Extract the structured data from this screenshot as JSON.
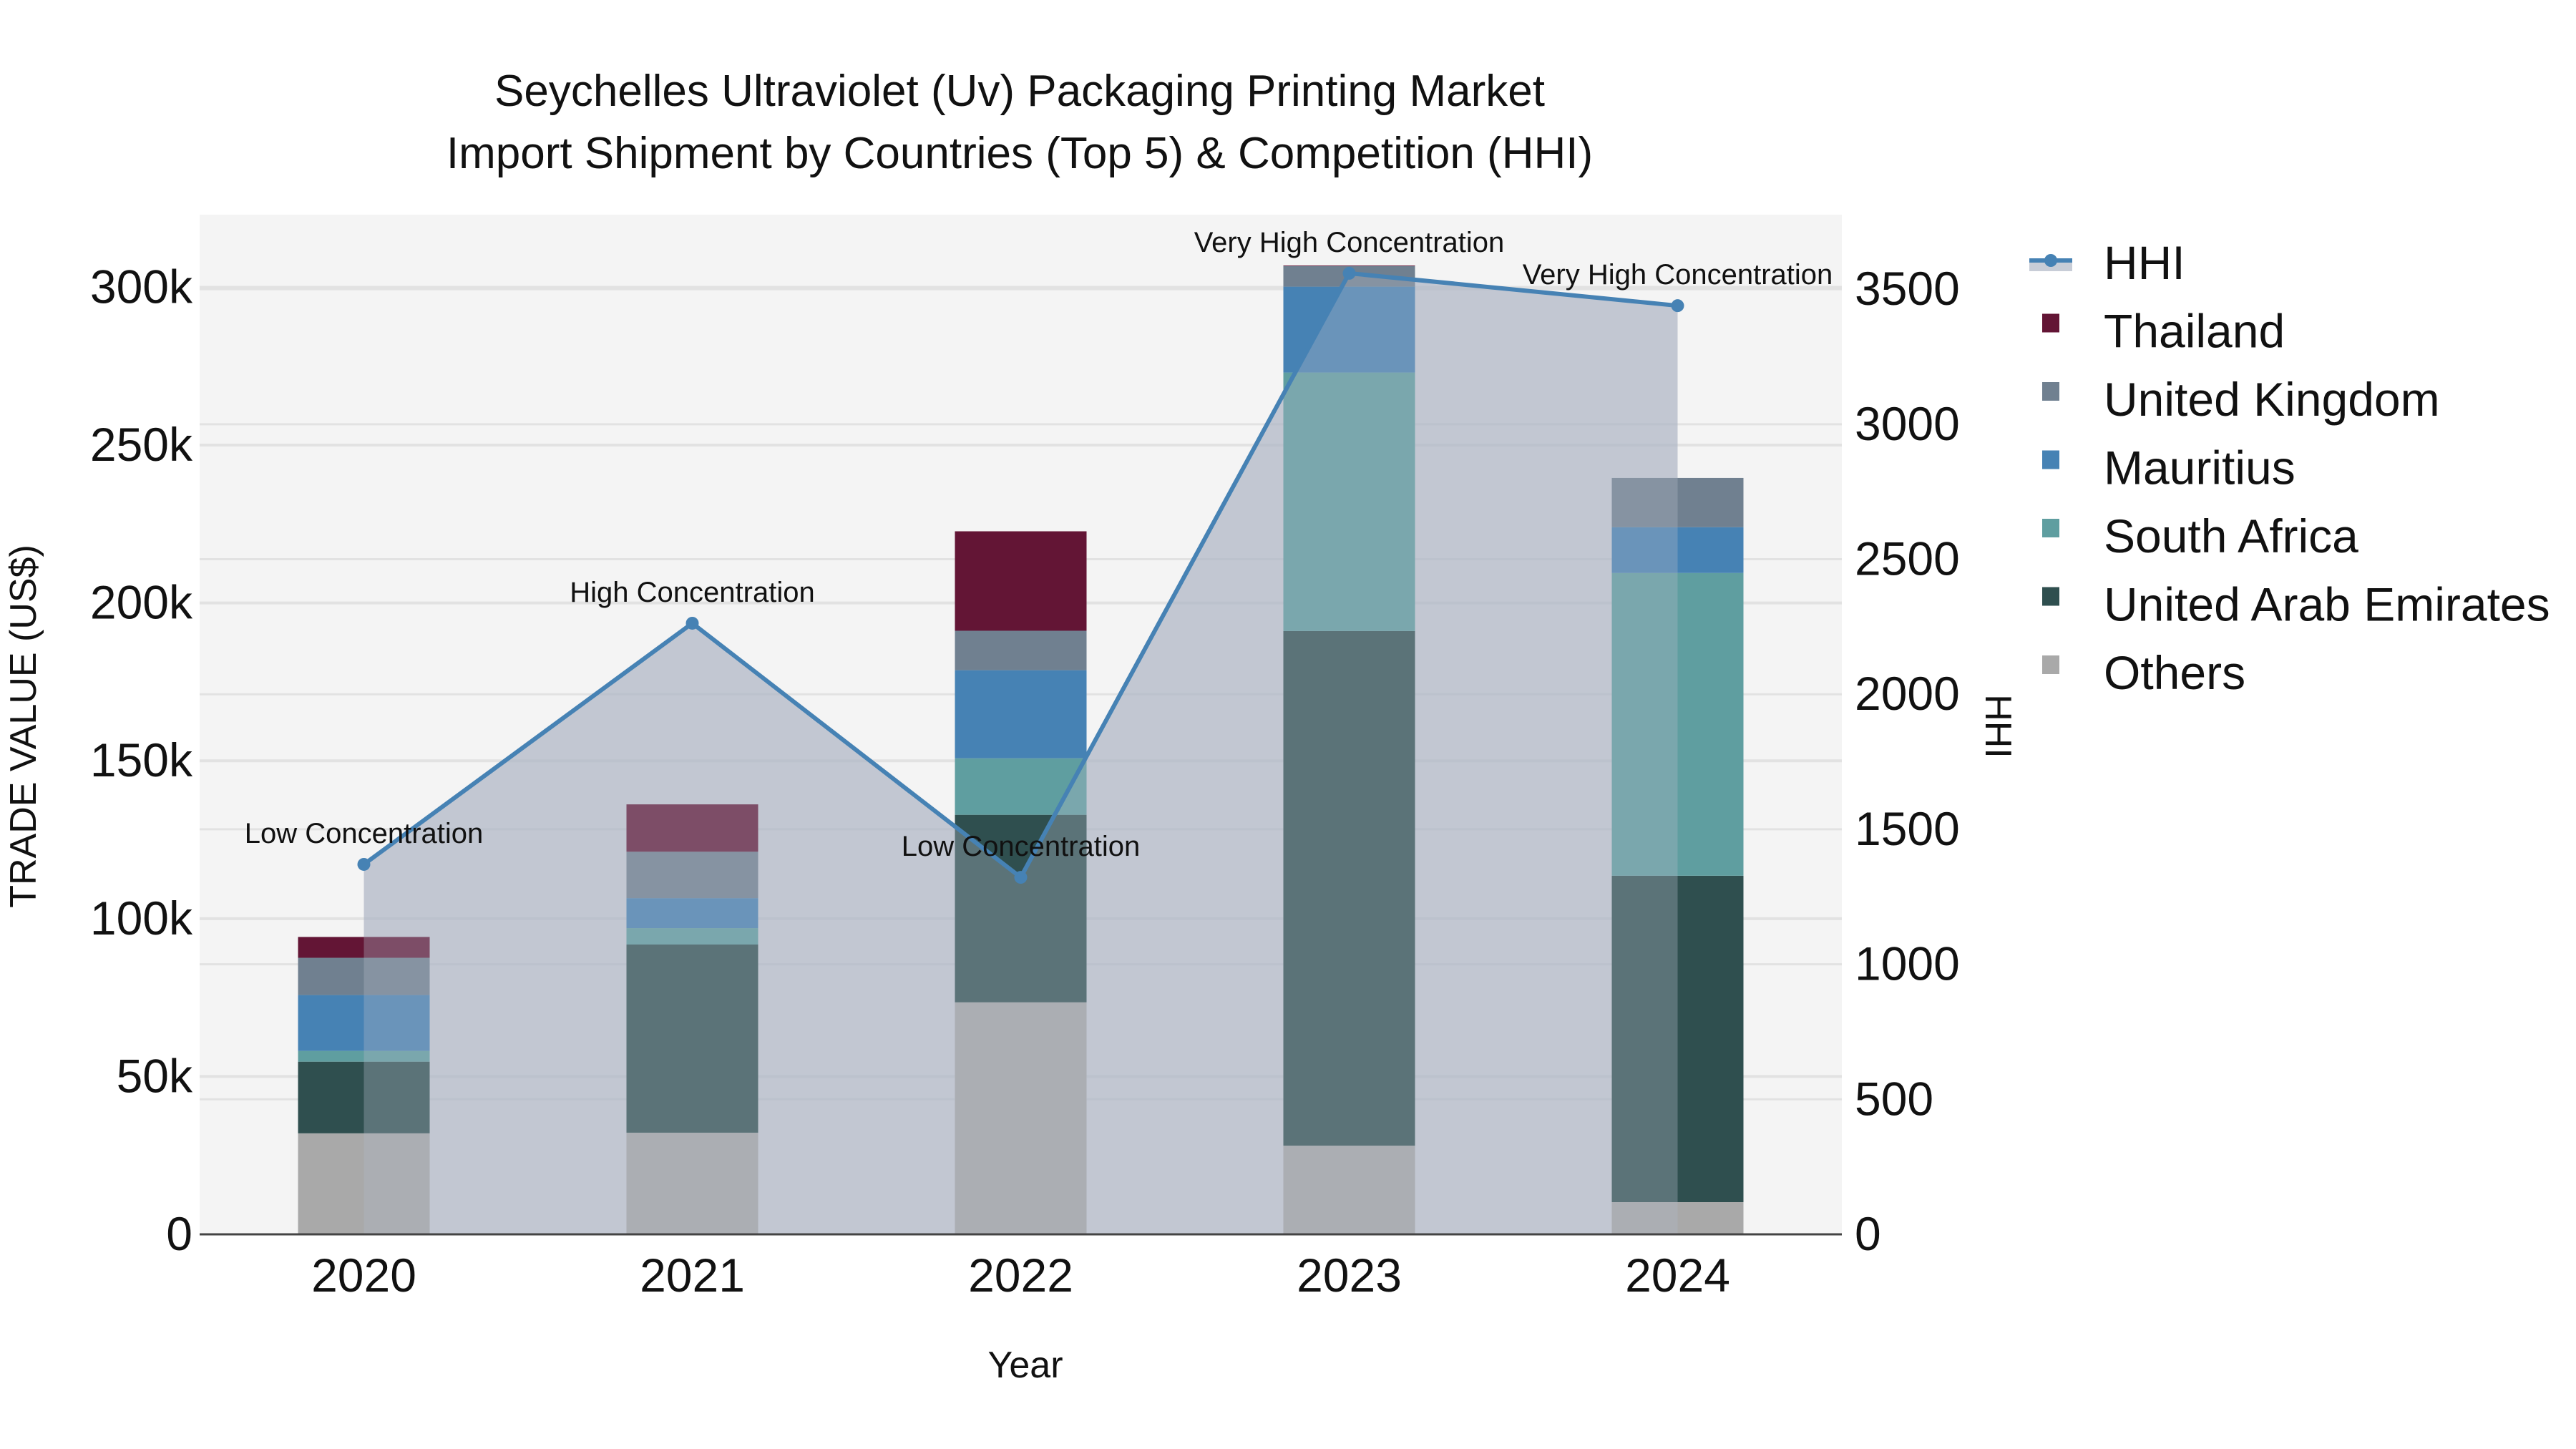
{
  "chart_data": {
    "type": "bar",
    "subtype": "stacked-bar-with-line-area",
    "title": "Seychelles Ultraviolet (Uv) Packaging Printing Market",
    "subtitle": "Import Shipment by Countries (Top 5) & Competition (HHI)",
    "xlabel": "Year",
    "ylabel": "TRADE VALUE (US$)",
    "y2label": "HHI",
    "categories": [
      "2020",
      "2021",
      "2022",
      "2023",
      "2024"
    ],
    "ylim": [
      0,
      323000
    ],
    "y2lim": [
      0,
      3776
    ],
    "yticks": [
      0,
      50000,
      100000,
      150000,
      200000,
      250000,
      300000
    ],
    "ytick_labels": [
      "0",
      "50k",
      "100k",
      "150k",
      "200k",
      "250k",
      "300k"
    ],
    "y2ticks": [
      0,
      500,
      1000,
      1500,
      2000,
      2500,
      3000,
      3500
    ],
    "y2tick_labels": [
      "0",
      "500",
      "1000",
      "1500",
      "2000",
      "2500",
      "3000",
      "3500"
    ],
    "grid": true,
    "legend_position": "right",
    "series": [
      {
        "name": "Others",
        "color": "#a9a9a9",
        "values": [
          32000,
          32200,
          73500,
          28100,
          10200
        ]
      },
      {
        "name": "United Arab Emirates",
        "color": "#2f4f4f",
        "values": [
          22700,
          59600,
          59400,
          163000,
          103400
        ]
      },
      {
        "name": "South Africa",
        "color": "#5f9ea0",
        "values": [
          3400,
          5200,
          17900,
          81900,
          95900
        ]
      },
      {
        "name": "Mauritius",
        "color": "#4682b4",
        "values": [
          17700,
          9500,
          27900,
          27200,
          14500
        ]
      },
      {
        "name": "United Kingdom",
        "color": "#708090",
        "values": [
          11800,
          14700,
          12500,
          6500,
          15600
        ]
      },
      {
        "name": "Thailand",
        "color": "#631535",
        "values": [
          6600,
          15000,
          31500,
          200,
          0
        ]
      }
    ],
    "hhi": {
      "name": "HHI",
      "line_color": "#4682b4",
      "fill_color": "rgba(176,184,198,0.6)",
      "values": [
        1370,
        2263,
        1322,
        3559,
        3439
      ],
      "annotations": [
        "Low Concentration",
        "High Concentration",
        "Low Concentration",
        "Very High Concentration",
        "Very High Concentration"
      ]
    }
  },
  "legend": {
    "items": [
      {
        "label": "HHI",
        "type": "line"
      },
      {
        "label": "Thailand",
        "color": "#631535"
      },
      {
        "label": "United Kingdom",
        "color": "#708090"
      },
      {
        "label": "Mauritius",
        "color": "#4682b4"
      },
      {
        "label": "South Africa",
        "color": "#5f9ea0"
      },
      {
        "label": "United Arab Emirates",
        "color": "#2f4f4f"
      },
      {
        "label": "Others",
        "color": "#a9a9a9"
      }
    ]
  }
}
